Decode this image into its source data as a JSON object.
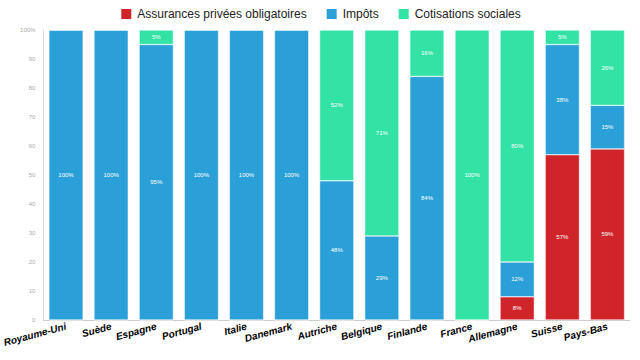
{
  "chart_data": {
    "type": "bar",
    "stacked": true,
    "data_labels": true,
    "legend": "top",
    "grid": false,
    "categories": [
      "Royaume-Uni",
      "Suède",
      "Espagne",
      "Portugal",
      "Italie",
      "Danemark",
      "Autriche",
      "Belgique",
      "Finlande",
      "France",
      "Allemagne",
      "Suisse",
      "Pays-Bas"
    ],
    "series": [
      {
        "name": "Assurances privées obligatoires",
        "color": "#d0242b",
        "values": [
          0,
          0,
          0,
          0,
          0,
          0,
          0,
          0,
          0,
          0,
          8,
          57,
          59
        ],
        "value_labels": [
          null,
          null,
          null,
          null,
          null,
          null,
          null,
          null,
          null,
          null,
          "8%",
          "57%",
          "59%"
        ]
      },
      {
        "name": "Impôts",
        "color": "#2b9fd8",
        "values": [
          100,
          100,
          95,
          100,
          100,
          100,
          48,
          29,
          84,
          0,
          12,
          38,
          15
        ],
        "value_labels": [
          "100%",
          "100%",
          "95%",
          "100%",
          "100%",
          "100%",
          "48%",
          "29%",
          "84%",
          null,
          "12%",
          "38%",
          "15%"
        ]
      },
      {
        "name": "Cotisations sociales",
        "color": "#33e3a6",
        "values": [
          0,
          0,
          5,
          0,
          0,
          0,
          52,
          71,
          16,
          100,
          80,
          5,
          26
        ],
        "value_labels": [
          null,
          null,
          "5%",
          null,
          null,
          null,
          "52%",
          "71%",
          "16%",
          "100%",
          "80%",
          "5%",
          "26%"
        ]
      }
    ],
    "ylim": [
      0,
      100
    ],
    "yticks": [
      0,
      10,
      20,
      30,
      40,
      50,
      60,
      70,
      80,
      {
        "value": 90,
        "label": "90"
      },
      {
        "value": 100,
        "label": "100%"
      }
    ]
  }
}
